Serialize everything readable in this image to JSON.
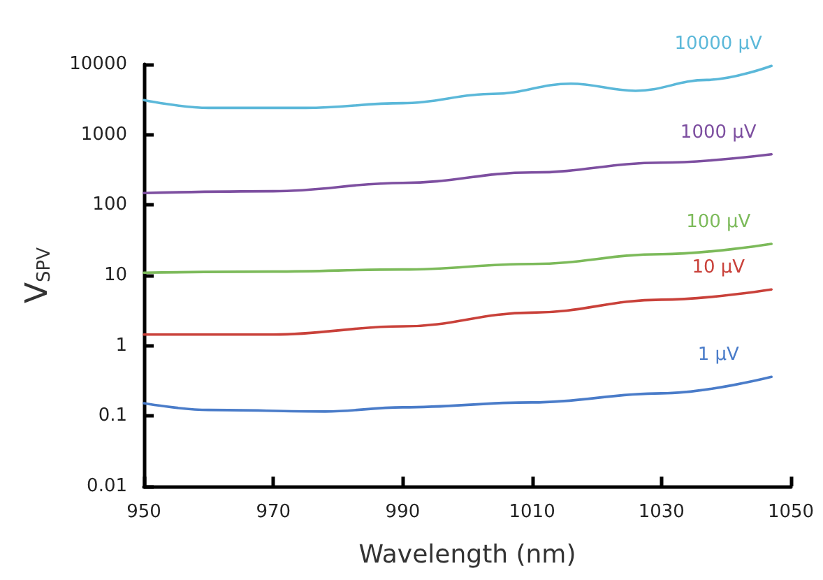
{
  "chart_data": {
    "type": "line",
    "xlabel": "Wavelength (nm)",
    "ylabel": "V$_{SPV}$",
    "log": "y",
    "grid": false,
    "marker": "none",
    "line_style": "solid",
    "xlim": [
      950,
      1050
    ],
    "xticks": [
      950,
      970,
      990,
      1010,
      1030,
      1050
    ],
    "ylim": [
      0.01,
      10000
    ],
    "yticks": [
      0.01,
      0.1,
      1,
      10,
      100,
      1000,
      10000
    ],
    "series": [
      {
        "name": "10000 μV",
        "color": "#5bb8d9",
        "x": [
          950,
          960,
          975,
          990,
          1004,
          1016,
          1026,
          1037,
          1047
        ],
        "values": [
          3100,
          2400,
          2400,
          2800,
          3800,
          5300,
          4200,
          6000,
          9500
        ]
      },
      {
        "name": "1000 μV",
        "color": "#7d4fa0",
        "x": [
          950,
          970,
          990,
          1010,
          1030,
          1047
        ],
        "values": [
          148,
          157,
          206,
          290,
          400,
          525
        ]
      },
      {
        "name": "100 μV",
        "color": "#7cba5a",
        "x": [
          950,
          970,
          990,
          1010,
          1030,
          1047
        ],
        "values": [
          10.9,
          11.3,
          12.1,
          14.5,
          20,
          28
        ]
      },
      {
        "name": "10 μV",
        "color": "#c9413a",
        "x": [
          950,
          970,
          990,
          1010,
          1030,
          1047
        ],
        "values": [
          1.44,
          1.44,
          1.88,
          2.95,
          4.5,
          6.3
        ]
      },
      {
        "name": "1 μV",
        "color": "#4a7cc9",
        "x": [
          950,
          960,
          978,
          990,
          1010,
          1030,
          1047
        ],
        "values": [
          0.152,
          0.122,
          0.116,
          0.133,
          0.156,
          0.21,
          0.36
        ]
      }
    ]
  }
}
